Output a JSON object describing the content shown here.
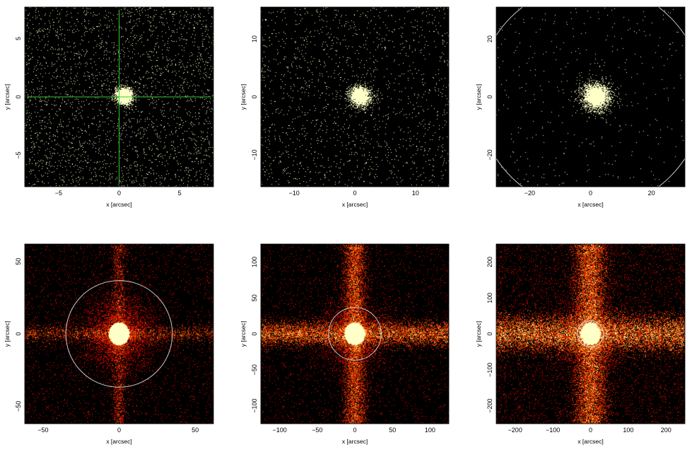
{
  "chart_data": [
    {
      "type": "scatter",
      "panel": "top-left",
      "xlabel": "x [arcsec]",
      "ylabel": "y [arcsec]",
      "xlim": [
        -7.8,
        7.8
      ],
      "ylim": [
        -7.7,
        7.7
      ],
      "xticks": [
        -5,
        0,
        5
      ],
      "yticks": [
        -5,
        0,
        5
      ],
      "crosshair": {
        "x": 0,
        "y": 0,
        "color": "#33cc33"
      },
      "circle": null,
      "image": {
        "kind": "core",
        "scale": 4.5,
        "counts": 5500,
        "bg": 2600,
        "streak": false
      }
    },
    {
      "type": "scatter",
      "panel": "top-middle",
      "xlabel": "x [arcsec]",
      "ylabel": "y [arcsec]",
      "xlim": [
        -15.5,
        15.5
      ],
      "ylim": [
        -15.5,
        15.5
      ],
      "xticks": [
        -10,
        0,
        10
      ],
      "yticks": [
        -10,
        0,
        10
      ],
      "circle": null,
      "image": {
        "kind": "core",
        "scale": 7,
        "counts": 3400,
        "bg": 1500,
        "streak": false
      }
    },
    {
      "type": "scatter",
      "panel": "top-right",
      "xlabel": "x [arcsec]",
      "ylabel": "y [arcsec]",
      "xlim": [
        -31,
        31
      ],
      "ylim": [
        -31,
        31
      ],
      "xticks": [
        -20,
        0,
        20
      ],
      "yticks": [
        -20,
        0,
        20
      ],
      "circle": {
        "x": 0,
        "y": 0,
        "r": 37,
        "color": "#c8c8c8"
      },
      "image": {
        "kind": "core",
        "scale": 9.5,
        "counts": 7000,
        "bg": 350,
        "streak": false
      }
    },
    {
      "type": "heatmap",
      "panel": "bottom-left",
      "xlabel": "x [arcsec]",
      "ylabel": "y [arcsec]",
      "xlim": [
        -62,
        62
      ],
      "ylim": [
        -62,
        62
      ],
      "xticks": [
        -50,
        0,
        50
      ],
      "yticks": [
        -50,
        0,
        50
      ],
      "circle": {
        "x": 0,
        "y": 0,
        "r": 35,
        "color": "#c8c8c8"
      },
      "image": {
        "kind": "bright",
        "scale": 13,
        "counts": 14000,
        "bg": 3000,
        "streak": true,
        "streakWidth": 6,
        "streakCounts": 1800
      }
    },
    {
      "type": "heatmap",
      "panel": "bottom-middle",
      "xlabel": "x [arcsec]",
      "ylabel": "y [arcsec]",
      "xlim": [
        -125,
        125
      ],
      "ylim": [
        -125,
        125
      ],
      "xticks": [
        -100,
        -50,
        0,
        50,
        100
      ],
      "yticks": [
        -100,
        -50,
        0,
        50,
        100
      ],
      "circle": {
        "x": 0,
        "y": 0,
        "r": 35,
        "color": "#c8c8c8"
      },
      "image": {
        "kind": "bright",
        "scale": 13,
        "counts": 9000,
        "bg": 2600,
        "streak": true,
        "streakWidth": 9,
        "streakCounts": 7000
      }
    },
    {
      "type": "heatmap",
      "panel": "bottom-right",
      "xlabel": "x [arcsec]",
      "ylabel": "y [arcsec]",
      "xlim": [
        -250,
        250
      ],
      "ylim": [
        -250,
        250
      ],
      "xticks": [
        -200,
        -100,
        0,
        100,
        200
      ],
      "yticks": [
        -200,
        -100,
        0,
        100,
        200
      ],
      "circle": {
        "x": 0,
        "y": 0,
        "r": 35,
        "color": "#c8c8c8"
      },
      "image": {
        "kind": "bright",
        "scale": 13,
        "counts": 7000,
        "bg": 5000,
        "streak": true,
        "streakWidth": 13,
        "streakCounts": 12000
      }
    }
  ]
}
